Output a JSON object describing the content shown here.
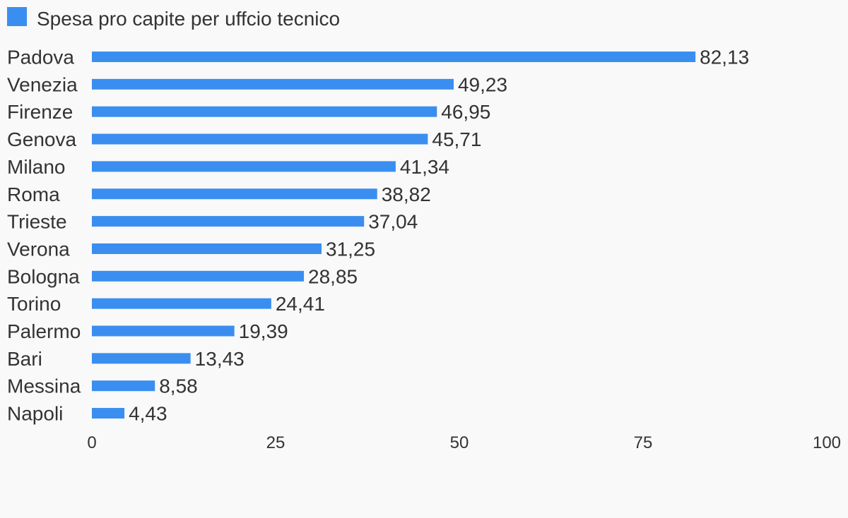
{
  "chart_data": {
    "type": "bar",
    "orientation": "horizontal",
    "categories": [
      "Padova",
      "Venezia",
      "Firenze",
      "Genova",
      "Milano",
      "Roma",
      "Trieste",
      "Verona",
      "Bologna",
      "Torino",
      "Palermo",
      "Bari",
      "Messina",
      "Napoli"
    ],
    "series": [
      {
        "name": "Spesa pro capite per uffcio tecnico",
        "color": "#3a8ef0",
        "values": [
          82.13,
          49.23,
          46.95,
          45.71,
          41.34,
          38.82,
          37.04,
          31.25,
          28.85,
          24.41,
          19.39,
          13.43,
          8.58,
          4.43
        ],
        "labels": [
          "82,13",
          "49,23",
          "46,95",
          "45,71",
          "41,34",
          "38,82",
          "37,04",
          "31,25",
          "28,85",
          "24,41",
          "19,39",
          "13,43",
          "8,58",
          "4,43"
        ]
      }
    ],
    "xlim": [
      0,
      100
    ],
    "xticks": [
      0,
      25,
      50,
      75,
      100
    ],
    "xtick_labels": [
      "0",
      "25",
      "50",
      "75",
      "100"
    ],
    "grid": false,
    "legend_position": "top-left"
  }
}
